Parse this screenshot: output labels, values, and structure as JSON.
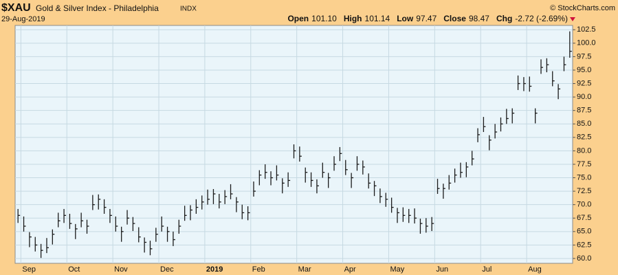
{
  "chart_data": {
    "type": "ohlc",
    "title": "$XAU",
    "subtitle": "Gold & Silver Index - Philadelphia",
    "exchange": "INDX",
    "source": "© StockCharts.com",
    "date": "29-Aug-2019",
    "quote": [
      {
        "label": "Open",
        "value": "101.10"
      },
      {
        "label": "High",
        "value": "101.14"
      },
      {
        "label": "Low",
        "value": "97.47"
      },
      {
        "label": "Close",
        "value": "98.47"
      },
      {
        "label": "Chg",
        "value": "-2.72 (-2.69%)"
      }
    ],
    "color": "#1a1a1a",
    "grid": true,
    "categories": [
      null,
      "Sep",
      null,
      null,
      null,
      null,
      null,
      null,
      null,
      "Oct",
      null,
      null,
      null,
      null,
      null,
      null,
      null,
      "Nov",
      null,
      null,
      null,
      null,
      null,
      null,
      null,
      "Dec",
      null,
      null,
      null,
      null,
      null,
      null,
      null,
      "2019",
      null,
      null,
      null,
      null,
      null,
      null,
      null,
      "Feb",
      null,
      null,
      null,
      null,
      null,
      null,
      null,
      "Mar",
      null,
      null,
      null,
      null,
      null,
      null,
      null,
      "Apr",
      null,
      null,
      null,
      null,
      null,
      null,
      null,
      "May",
      null,
      null,
      null,
      null,
      null,
      null,
      null,
      "Jun",
      null,
      null,
      null,
      null,
      null,
      null,
      null,
      "Jul",
      null,
      null,
      null,
      null,
      null,
      null,
      null,
      "Aug",
      null,
      null,
      null,
      null,
      null,
      null,
      null
    ],
    "close": [
      68,
      66,
      64,
      62.5,
      61.5,
      62,
      64.5,
      67,
      68,
      66.5,
      65.5,
      67,
      66,
      70,
      71,
      69.5,
      68,
      66,
      65,
      67.5,
      66.5,
      64,
      63,
      61.8,
      64.5,
      66,
      65,
      63.5,
      66,
      68,
      69,
      69.5,
      70.5,
      71,
      72,
      70.5,
      71.5,
      72,
      70.5,
      68.5,
      68.5,
      72.5,
      75.5,
      76,
      75,
      75.5,
      74,
      74.5,
      80,
      79,
      76,
      74.5,
      73.5,
      76,
      75,
      77.5,
      79.5,
      76.5,
      75,
      77.5,
      77,
      74,
      73.5,
      71.5,
      71,
      69.5,
      68.5,
      68,
      68,
      67.5,
      66.5,
      66,
      66.5,
      73,
      73,
      74,
      75.5,
      76,
      77,
      78.5,
      83,
      84.5,
      82,
      83.5,
      85,
      86,
      87,
      92.5,
      92.5,
      92,
      87,
      95.5,
      96,
      93,
      91.5,
      96,
      98.5
    ],
    "high": [
      69.2,
      67.8,
      64.9,
      64.0,
      62.7,
      63.8,
      65.4,
      68.5,
      69.2,
      68.3,
      66.4,
      68.5,
      67.2,
      71.8,
      71.9,
      71.0,
      69.2,
      67.8,
      65.9,
      69.0,
      67.7,
      65.8,
      63.9,
      63.3,
      65.7,
      67.8,
      65.9,
      65.0,
      67.2,
      69.8,
      69.9,
      71.0,
      71.7,
      72.8,
      72.9,
      72.0,
      72.7,
      73.8,
      71.4,
      70.0,
      69.7,
      74.3,
      76.4,
      77.5,
      76.2,
      77.3,
      74.9,
      76.0,
      81.2,
      80.8,
      76.9,
      76.0,
      74.7,
      77.8,
      75.9,
      79.0,
      80.7,
      78.3,
      75.9,
      79.0,
      78.2,
      75.8,
      74.4,
      73.0,
      72.2,
      71.3,
      69.4,
      69.5,
      69.2,
      69.3,
      67.4,
      67.5,
      67.7,
      74.8,
      73.9,
      75.5,
      76.7,
      77.8,
      77.9,
      80.0,
      84.2,
      86.3,
      82.9,
      85.0,
      86.2,
      87.8,
      87.9,
      94.0,
      93.7,
      93.8,
      87.9,
      97.0,
      97.2,
      94.8,
      92.4,
      97.5,
      102.2
    ],
    "low": [
      66.6,
      65.0,
      62.1,
      61.3,
      60.1,
      61.0,
      62.6,
      65.8,
      66.6,
      65.5,
      63.6,
      65.8,
      64.6,
      69.0,
      69.1,
      68.3,
      66.6,
      65.0,
      63.1,
      66.3,
      65.1,
      63.0,
      61.1,
      60.6,
      63.1,
      65.0,
      63.1,
      62.3,
      64.6,
      67.0,
      67.1,
      68.3,
      69.1,
      70.0,
      70.1,
      69.3,
      70.1,
      71.0,
      68.6,
      67.3,
      67.1,
      71.5,
      73.6,
      74.8,
      73.6,
      74.5,
      72.1,
      73.3,
      78.6,
      78.0,
      74.1,
      73.3,
      72.1,
      75.0,
      73.1,
      76.3,
      78.1,
      75.5,
      73.1,
      76.3,
      75.6,
      73.0,
      71.6,
      70.3,
      69.6,
      68.5,
      66.6,
      66.8,
      66.6,
      66.5,
      64.6,
      64.8,
      65.1,
      72.0,
      71.1,
      72.8,
      74.1,
      75.0,
      75.1,
      77.3,
      81.6,
      83.5,
      80.1,
      82.3,
      83.6,
      85.0,
      85.1,
      91.3,
      91.1,
      91.0,
      85.1,
      94.3,
      94.6,
      92.0,
      89.6,
      94.8,
      97.3
    ],
    "ylim": [
      59.1,
      103.3
    ],
    "yticks": [
      {
        "value": 60,
        "label": "60.0"
      },
      {
        "value": 62.5,
        "label": "62.5"
      },
      {
        "value": 65,
        "label": "65.0"
      },
      {
        "value": 67.5,
        "label": "67.5"
      },
      {
        "value": 70,
        "label": "70.0"
      },
      {
        "value": 72.5,
        "label": "72.5"
      },
      {
        "value": 75,
        "label": "75.0"
      },
      {
        "value": 77.5,
        "label": "77.5"
      },
      {
        "value": 80,
        "label": "80.0"
      },
      {
        "value": 82.5,
        "label": "82.5"
      },
      {
        "value": 85,
        "label": "85.0"
      },
      {
        "value": 87.5,
        "label": "87.5"
      },
      {
        "value": 90,
        "label": "90.0"
      },
      {
        "value": 92.5,
        "label": "92.5"
      },
      {
        "value": 95,
        "label": "95.0"
      },
      {
        "value": 97.5,
        "label": "97.5"
      },
      {
        "value": 100,
        "label": "100.0"
      },
      {
        "value": 102.5,
        "label": "102.5"
      }
    ]
  }
}
